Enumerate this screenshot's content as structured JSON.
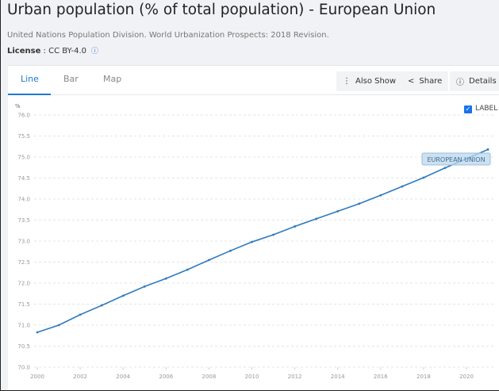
{
  "header": {
    "title": "Urban population (% of total population) - European Union",
    "source": "United Nations Population Division. World Urbanization Prospects: 2018 Revision.",
    "license_label": "License",
    "license_value": " : CC BY-4.0"
  },
  "tabs": [
    {
      "label": "Line"
    },
    {
      "label": "Bar"
    },
    {
      "label": "Map"
    }
  ],
  "buttons": {
    "also_show": "Also Show",
    "share": "Share",
    "details": "Details"
  },
  "label_toggle": {
    "label": "LABEL",
    "checked": true
  },
  "colors": {
    "line": "#2f7bbd",
    "accent": "#1f7ad1"
  },
  "chart_data": {
    "type": "line",
    "title": "Urban population (% of total population) - European Union",
    "ylabel": "%",
    "xlabel": "",
    "ylim": [
      70,
      76
    ],
    "xlim": [
      2000,
      2021
    ],
    "yticks": [
      "70.0",
      "70.5",
      "71.0",
      "71.5",
      "72.0",
      "72.5",
      "73.0",
      "73.5",
      "74.0",
      "74.5",
      "75.0",
      "75.5",
      "76.0"
    ],
    "xticks": [
      "2000",
      "2002",
      "2004",
      "2006",
      "2008",
      "2010",
      "2012",
      "2014",
      "2016",
      "2018",
      "2020"
    ],
    "grid": true,
    "series": [
      {
        "name": "EUROPEAN UNION",
        "x": [
          2000,
          2001,
          2002,
          2003,
          2004,
          2005,
          2006,
          2007,
          2008,
          2009,
          2010,
          2011,
          2012,
          2013,
          2014,
          2015,
          2016,
          2017,
          2018,
          2019,
          2020,
          2021
        ],
        "values": [
          70.83,
          71.0,
          71.25,
          71.47,
          71.7,
          71.92,
          72.11,
          72.32,
          72.55,
          72.77,
          72.98,
          73.15,
          73.35,
          73.53,
          73.71,
          73.89,
          74.09,
          74.3,
          74.51,
          74.74,
          74.96,
          75.18
        ]
      }
    ]
  }
}
